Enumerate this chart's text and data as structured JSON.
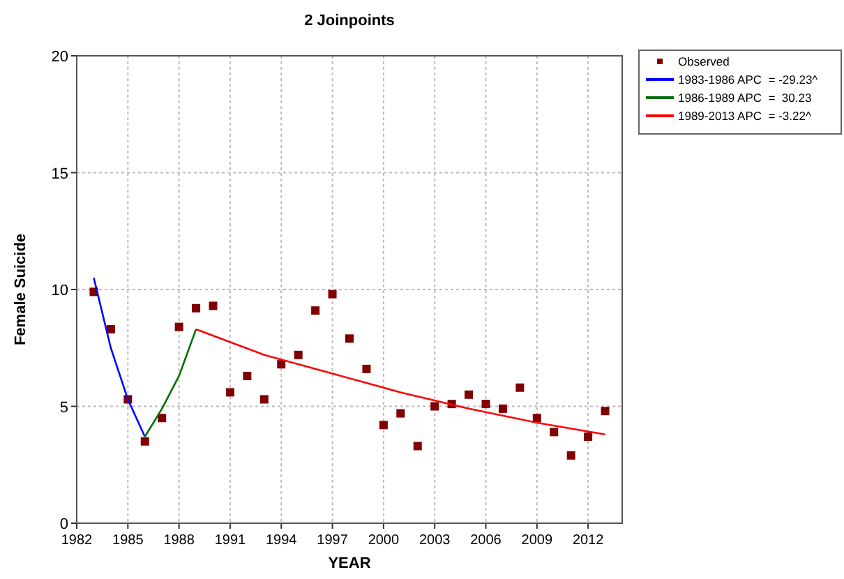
{
  "chart_data": {
    "type": "scatter",
    "title": "2 Joinpoints",
    "xlabel": "YEAR",
    "ylabel": "Female Suicide",
    "xlim": [
      1982,
      2014
    ],
    "xticks": [
      1982,
      1985,
      1988,
      1991,
      1994,
      1997,
      2000,
      2003,
      2006,
      2009,
      2012
    ],
    "ylim": [
      0,
      20
    ],
    "yticks": [
      0,
      5,
      10,
      15,
      20
    ],
    "grid": true,
    "legend": "top right",
    "series": [
      {
        "name": "Observed",
        "marker": "square",
        "color": "#800000",
        "x": [
          1983,
          1984,
          1985,
          1986,
          1987,
          1988,
          1989,
          1990,
          1991,
          1992,
          1993,
          1994,
          1995,
          1996,
          1997,
          1998,
          1999,
          2000,
          2001,
          2002,
          2003,
          2004,
          2005,
          2006,
          2007,
          2008,
          2009,
          2010,
          2011,
          2012,
          2013
        ],
        "values": [
          9.9,
          8.3,
          5.3,
          3.5,
          4.5,
          8.4,
          9.2,
          9.3,
          5.6,
          6.3,
          5.3,
          6.8,
          7.2,
          9.1,
          9.8,
          7.9,
          6.6,
          4.2,
          4.7,
          3.3,
          5.0,
          5.1,
          5.5,
          5.1,
          4.9,
          5.8,
          4.5,
          3.9,
          2.9,
          3.7,
          4.8
        ]
      },
      {
        "name": "1983-1986 APC  = -29.23^",
        "type": "line",
        "marker": "none",
        "color": "#0000ff",
        "x": [
          1983,
          1984,
          1985,
          1986
        ],
        "values": [
          10.5,
          7.5,
          5.3,
          3.7
        ]
      },
      {
        "name": "1986-1989 APC  =  30.23",
        "type": "line",
        "marker": "none",
        "color": "#007000",
        "x": [
          1986,
          1987,
          1988,
          1989
        ],
        "values": [
          3.7,
          4.9,
          6.3,
          8.3
        ]
      },
      {
        "name": "1989-2013 APC  = -3.22^",
        "type": "line",
        "marker": "none",
        "color": "#ff0000",
        "x": [
          1989,
          1993,
          1997,
          2001,
          2005,
          2009,
          2013
        ],
        "values": [
          8.3,
          7.2,
          6.4,
          5.6,
          4.9,
          4.3,
          3.8
        ]
      }
    ]
  }
}
